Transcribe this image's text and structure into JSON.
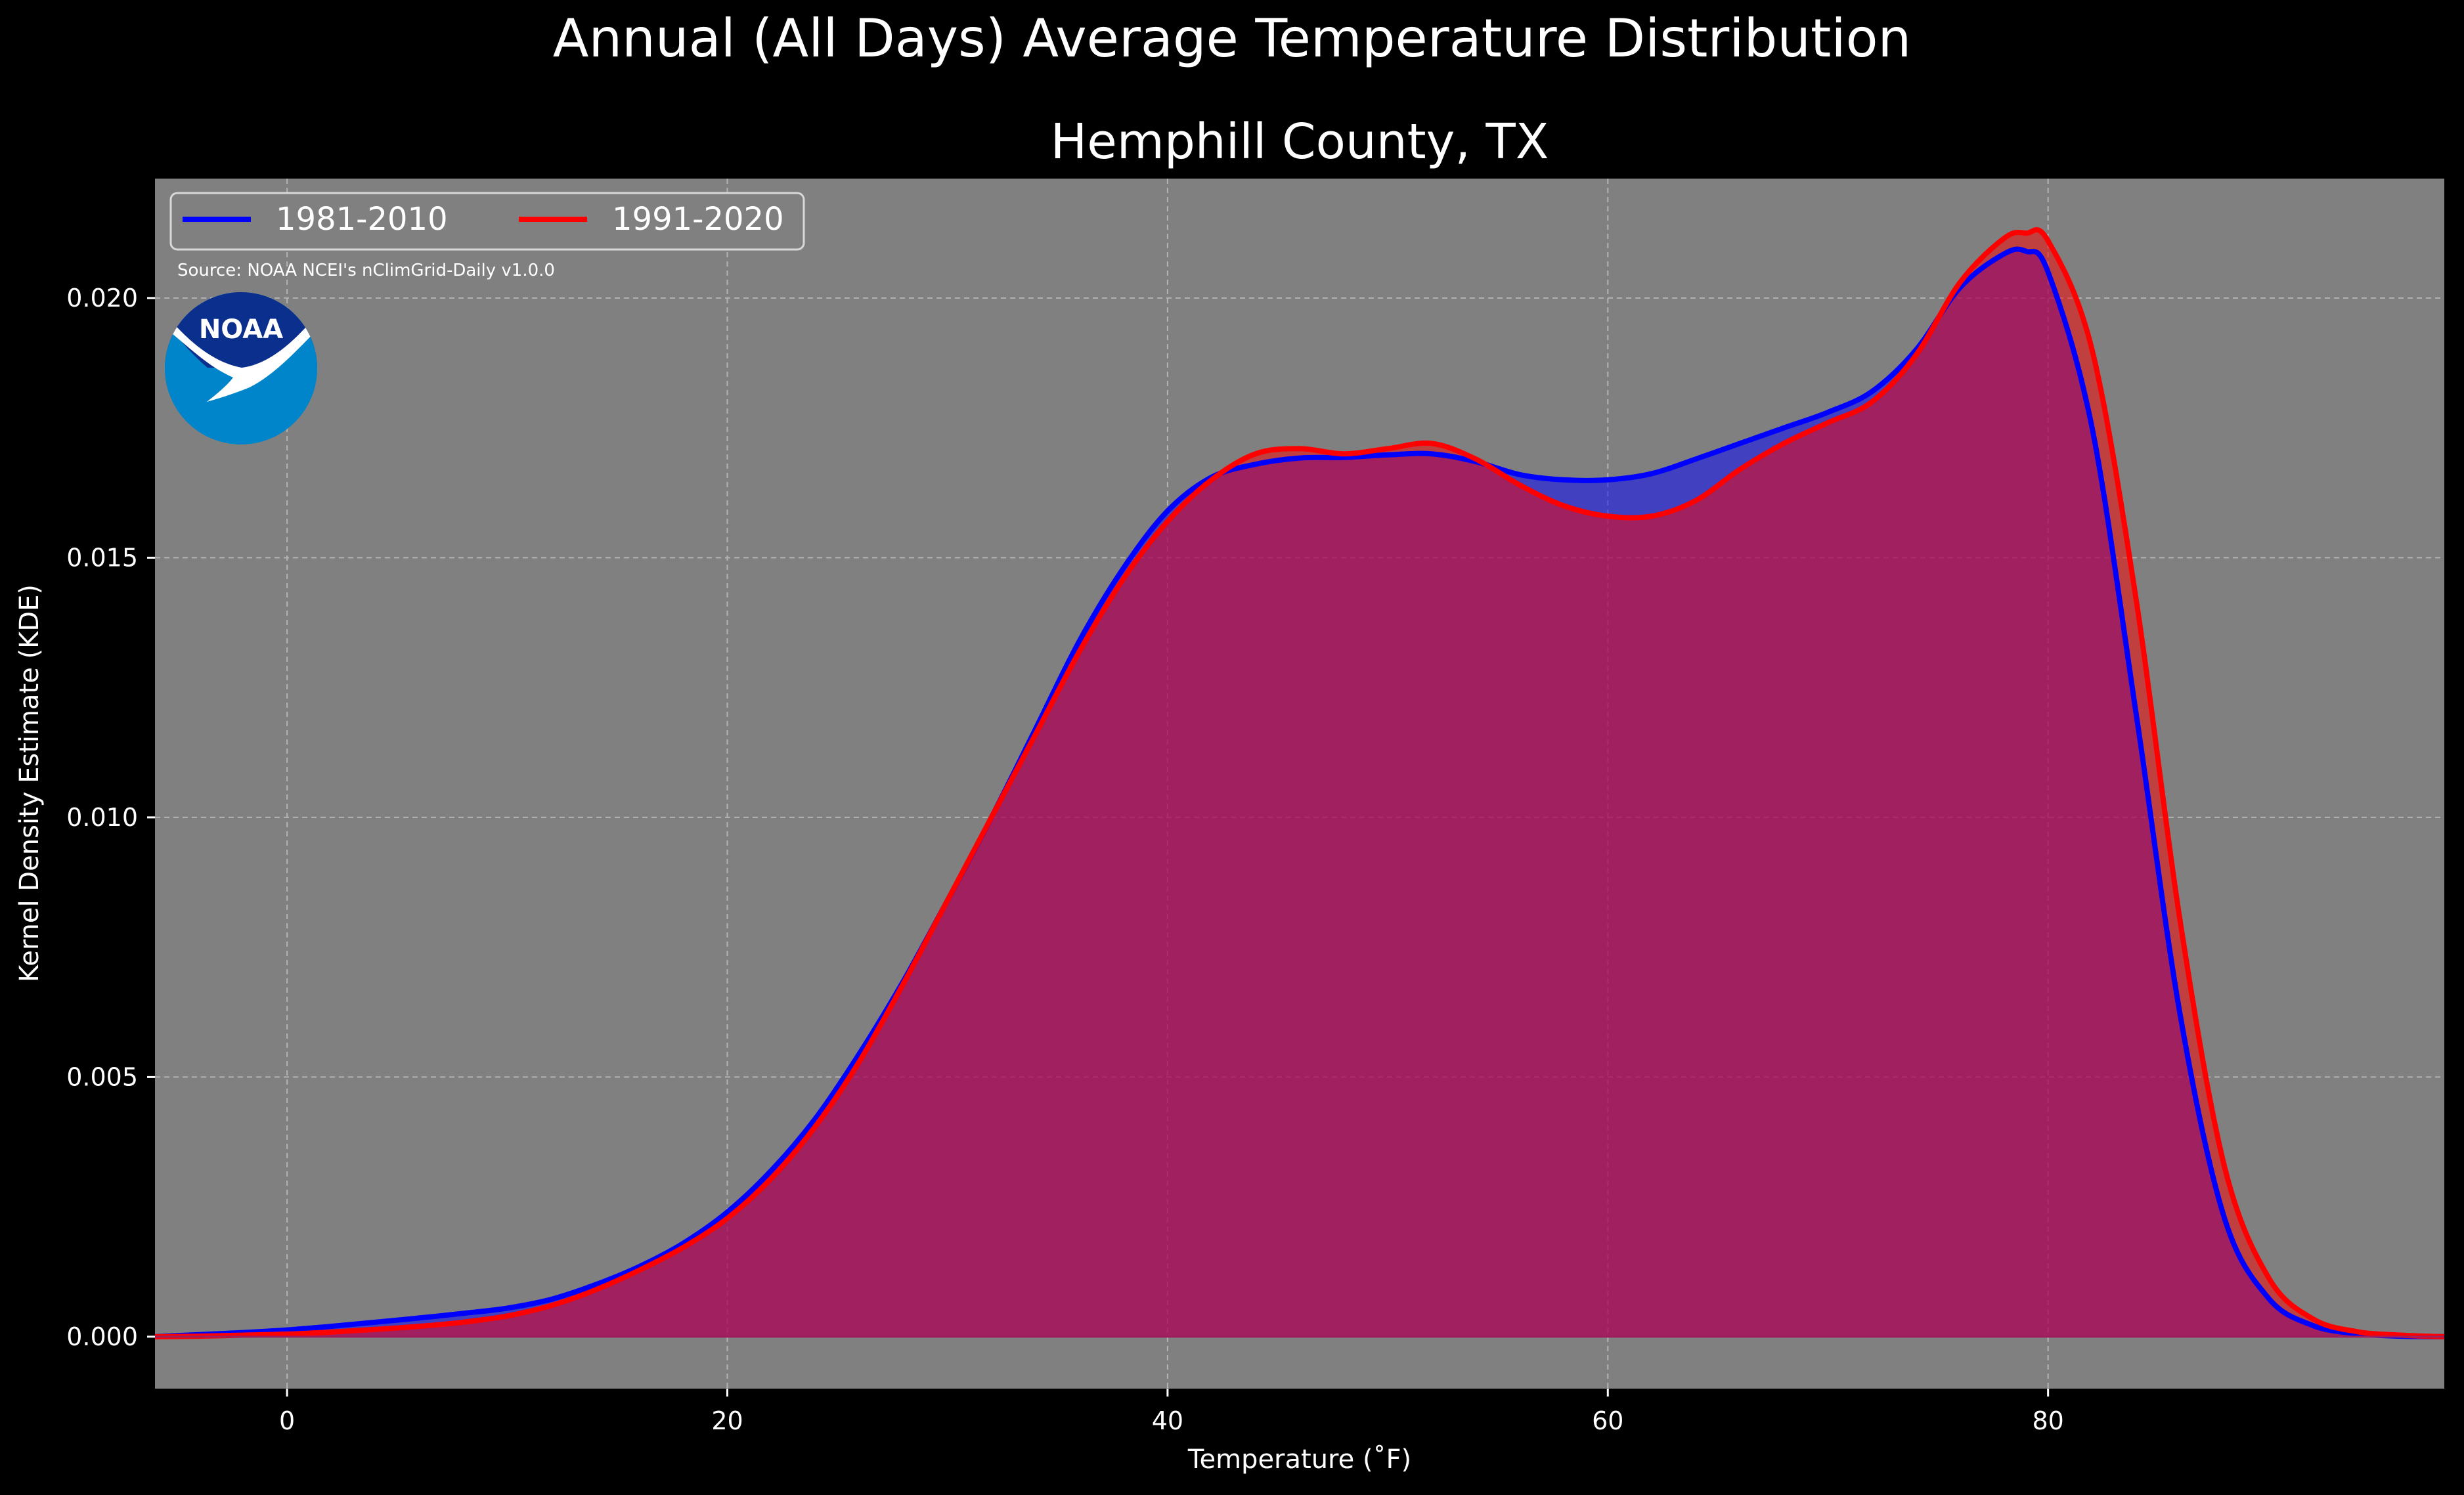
{
  "chart_data": {
    "type": "area",
    "suptitle": "Annual (All Days) Average Temperature Distribution",
    "title": "Hemphill County, TX",
    "xlabel": "Temperature ($^\\circ$F)",
    "xlabel_display": "Temperature (˚F)",
    "ylabel": "Kernel Density Estimate (KDE)",
    "xlim": [
      -6,
      98
    ],
    "ylim": [
      -0.001,
      0.0223
    ],
    "x_ticks": [
      0,
      20,
      40,
      60,
      80
    ],
    "x_tick_labels": [
      "0",
      "20",
      "40",
      "60",
      "80"
    ],
    "y_ticks": [
      0,
      0.005,
      0.01,
      0.015,
      0.02
    ],
    "y_tick_labels": [
      "0.000",
      "0.005",
      "0.010",
      "0.015",
      "0.020"
    ],
    "grid": true,
    "legend_position": "top-left",
    "source": "Source: NOAA NCEI's nClimGrid-Daily v1.0.0",
    "logo_text": "NOAA",
    "colors": {
      "background": "#000000",
      "plot_background": "#808080",
      "series_1": "#0000ff",
      "series_2": "#ff0000",
      "overlap_fill": "#9e1e5e",
      "blue_only_fill": "#4040cc",
      "red_only_fill": "#c0304a",
      "noaa_dark": "#0a2f8c",
      "noaa_light": "#0085ca"
    },
    "series": [
      {
        "name": "1981-2010",
        "color": "#0000ff",
        "x": [
          -6,
          -4,
          -2,
          0,
          2,
          4,
          6,
          8,
          10,
          12,
          14,
          16,
          18,
          20,
          22,
          24,
          26,
          28,
          30,
          32,
          34,
          36,
          38,
          40,
          42,
          44,
          46,
          48,
          50,
          52,
          54,
          56,
          58,
          60,
          62,
          64,
          66,
          68,
          70,
          72,
          74,
          76,
          78,
          79,
          80,
          82,
          84,
          86,
          88,
          90,
          92,
          94,
          96,
          98
        ],
        "y": [
          0.0,
          4e-05,
          8e-05,
          0.00013,
          0.0002,
          0.00028,
          0.00036,
          0.00045,
          0.00055,
          0.00072,
          0.001,
          0.00135,
          0.0018,
          0.0024,
          0.0032,
          0.0042,
          0.00545,
          0.00685,
          0.0084,
          0.01,
          0.0117,
          0.0134,
          0.0148,
          0.0159,
          0.01655,
          0.0168,
          0.01692,
          0.01693,
          0.01698,
          0.017,
          0.01685,
          0.0166,
          0.0165,
          0.0165,
          0.01662,
          0.0169,
          0.0172,
          0.0175,
          0.0178,
          0.0182,
          0.019,
          0.0202,
          0.02085,
          0.0209,
          0.0205,
          0.0175,
          0.012,
          0.0062,
          0.0023,
          0.00075,
          0.00022,
          6e-05,
          1e-05,
          0.0
        ]
      },
      {
        "name": "1991-2020",
        "color": "#ff0000",
        "x": [
          -6,
          -4,
          -2,
          0,
          2,
          4,
          6,
          8,
          10,
          12,
          14,
          16,
          18,
          20,
          22,
          24,
          26,
          28,
          30,
          32,
          34,
          36,
          38,
          40,
          42,
          44,
          46,
          48,
          50,
          52,
          54,
          56,
          58,
          60,
          62,
          64,
          66,
          68,
          70,
          72,
          74,
          76,
          78,
          79,
          80,
          82,
          84,
          86,
          88,
          90,
          92,
          94,
          96,
          98
        ],
        "y": [
          0.0,
          1e-05,
          3e-05,
          5e-05,
          9e-05,
          0.00014,
          0.0002,
          0.00028,
          0.0004,
          0.0006,
          0.0009,
          0.00128,
          0.00172,
          0.00228,
          0.00305,
          0.00405,
          0.0053,
          0.0068,
          0.0084,
          0.01,
          0.0116,
          0.0132,
          0.0146,
          0.0157,
          0.0165,
          0.017,
          0.0171,
          0.017,
          0.0171,
          0.0172,
          0.0169,
          0.0164,
          0.016,
          0.0158,
          0.0158,
          0.0161,
          0.0167,
          0.0172,
          0.0176,
          0.018,
          0.0189,
          0.0203,
          0.02115,
          0.02125,
          0.0211,
          0.019,
          0.0142,
          0.008,
          0.0033,
          0.00115,
          0.00035,
          0.0001,
          3e-05,
          0.0
        ]
      }
    ]
  }
}
